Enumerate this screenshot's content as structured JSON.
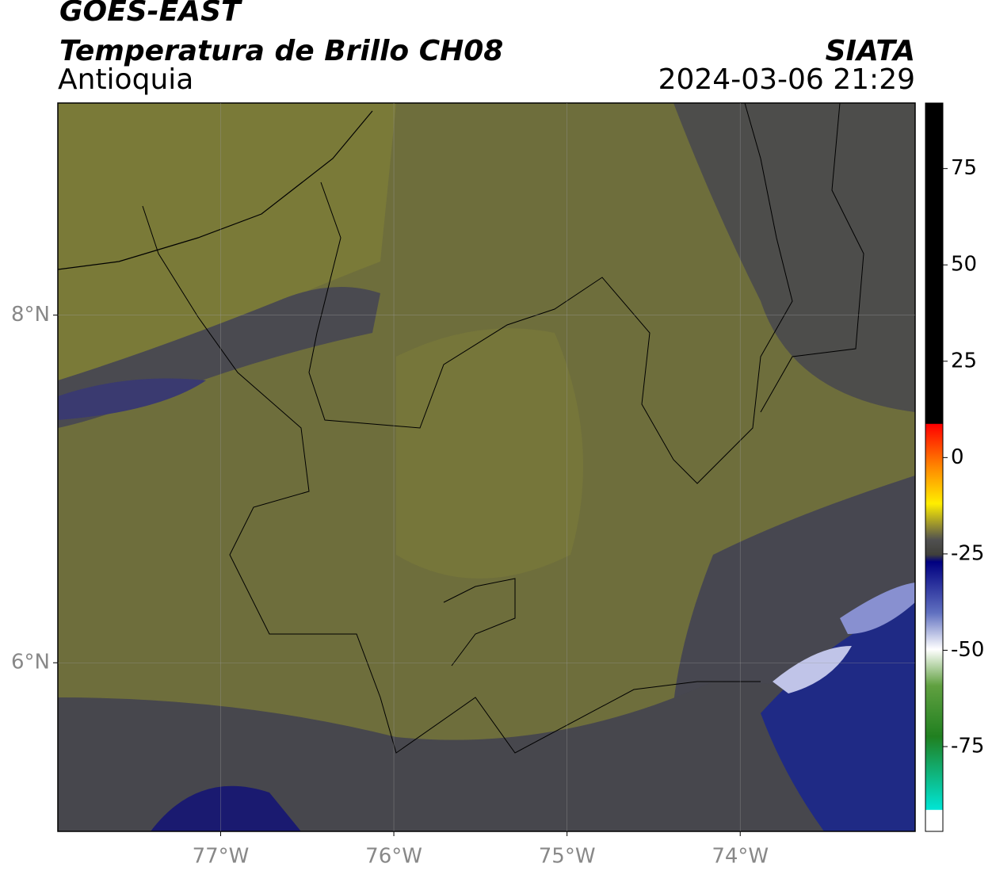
{
  "header": {
    "satellite": "GOES-EAST",
    "product": "Temperatura de Brillo CH08",
    "region": "Antioquia",
    "source": "SIATA",
    "timestamp": "2024-03-06 21:29"
  },
  "map": {
    "xlim": [
      -77.94,
      -72.99
    ],
    "ylim": [
      5.03,
      9.22
    ],
    "xticks": [
      {
        "value": -77,
        "label": "77°W"
      },
      {
        "value": -76,
        "label": "76°W"
      },
      {
        "value": -75,
        "label": "75°W"
      },
      {
        "value": -74,
        "label": "74°W"
      }
    ],
    "yticks": [
      {
        "value": 8,
        "label": "8°N"
      },
      {
        "value": 6,
        "label": "6°N"
      }
    ],
    "grid": true
  },
  "colorbar": {
    "lim": [
      -97,
      92
    ],
    "ticks": [
      75,
      50,
      25,
      0,
      -25,
      -50,
      -75
    ]
  }
}
